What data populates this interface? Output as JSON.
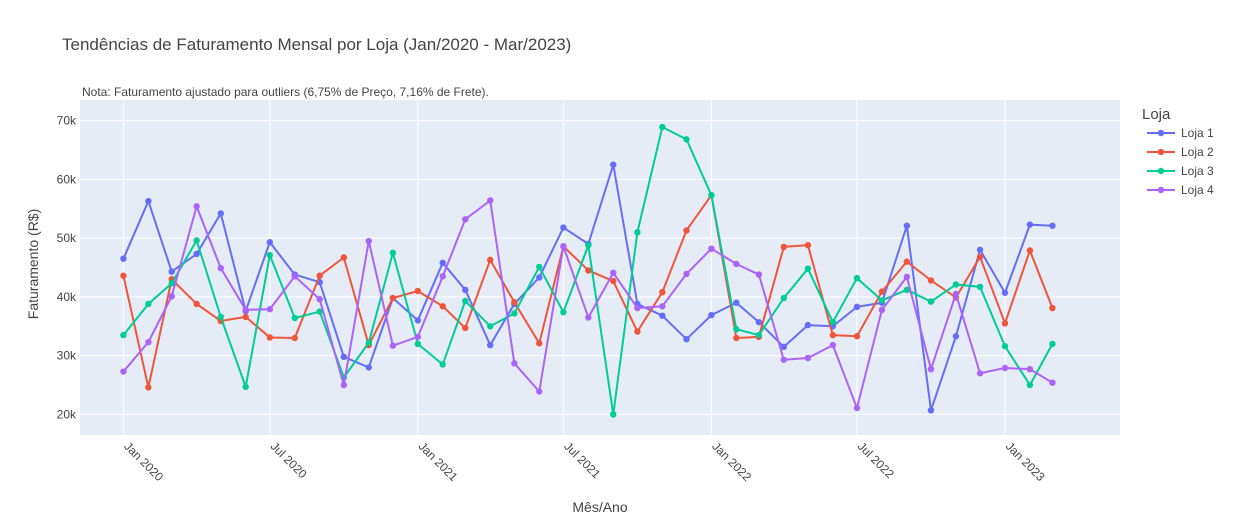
{
  "chart_data": {
    "type": "line",
    "title": "Tendências de Faturamento Mensal por Loja (Jan/2020 - Mar/2023)",
    "note": "Nota: Faturamento ajustado para outliers (6,75% de Preço, 7,16% de Frete).",
    "xlabel": "Mês/Ano",
    "ylabel": "Faturamento (R$)",
    "legend_title": "Loja",
    "legend_position": "right",
    "grid": true,
    "xlim": [
      "2019-11-08",
      "2023-05-24"
    ],
    "ylim": [
      16500,
      73500
    ],
    "x_ticks": [
      "2020-01-01",
      "2020-07-01",
      "2021-01-01",
      "2021-07-01",
      "2022-01-01",
      "2022-07-01",
      "2023-01-01"
    ],
    "x_tick_labels": [
      "Jan 2020",
      "Jul 2020",
      "Jan 2021",
      "Jul 2021",
      "Jan 2022",
      "Jul 2022",
      "Jan 2023"
    ],
    "y_ticks": [
      20000,
      30000,
      40000,
      50000,
      60000,
      70000
    ],
    "y_tick_labels": [
      "20k",
      "30k",
      "40k",
      "50k",
      "60k",
      "70k"
    ],
    "x": [
      "2020-01",
      "2020-02",
      "2020-03",
      "2020-04",
      "2020-05",
      "2020-06",
      "2020-07",
      "2020-08",
      "2020-09",
      "2020-10",
      "2020-11",
      "2020-12",
      "2021-01",
      "2021-02",
      "2021-03",
      "2021-04",
      "2021-05",
      "2021-06",
      "2021-07",
      "2021-08",
      "2021-09",
      "2021-10",
      "2021-11",
      "2021-12",
      "2022-01",
      "2022-02",
      "2022-03",
      "2022-04",
      "2022-05",
      "2022-06",
      "2022-07",
      "2022-08",
      "2022-09",
      "2022-10",
      "2022-11",
      "2022-12",
      "2023-01",
      "2023-02",
      "2023-03"
    ],
    "series": [
      {
        "name": "Loja 1",
        "color": "#636efa",
        "values": [
          46500,
          56300,
          44300,
          47300,
          54200,
          37600,
          49300,
          43800,
          42500,
          29800,
          28000,
          39800,
          36000,
          45800,
          41200,
          31800,
          38800,
          43300,
          51800,
          49000,
          62500,
          38800,
          36800,
          32800,
          36900,
          39000,
          35700,
          31500,
          35200,
          35000,
          38300,
          39000,
          52100,
          20700,
          33300,
          48000,
          40700,
          52300,
          52100
        ]
      },
      {
        "name": "Loja 2",
        "color": "#ef553b",
        "values": [
          43600,
          24600,
          43000,
          38800,
          35900,
          36600,
          33100,
          33000,
          43600,
          46700,
          31800,
          39800,
          41000,
          38400,
          34700,
          46300,
          39100,
          32100,
          48600,
          44500,
          42700,
          34100,
          40800,
          51300,
          57300,
          33000,
          33200,
          48500,
          48800,
          33500,
          33300,
          40900,
          46000,
          42800,
          39900,
          46800,
          35500,
          47900,
          38100
        ]
      },
      {
        "name": "Loja 3",
        "color": "#00cc96",
        "values": [
          33500,
          38800,
          42300,
          49600,
          36600,
          24700,
          47100,
          36400,
          37500,
          26300,
          32200,
          47500,
          32000,
          28500,
          39300,
          35000,
          37200,
          45100,
          37400,
          48800,
          20000,
          51000,
          68900,
          66800,
          57300,
          34500,
          33500,
          39800,
          44800,
          35700,
          43200,
          39400,
          41200,
          39200,
          42100,
          41700,
          31600,
          25000,
          32000
        ]
      },
      {
        "name": "Loja 4",
        "color": "#ab63fa",
        "values": [
          27300,
          32300,
          40100,
          55400,
          44900,
          37800,
          37900,
          43500,
          39600,
          25000,
          49500,
          31700,
          33200,
          43500,
          53200,
          56400,
          28700,
          23900,
          48600,
          36500,
          44100,
          38100,
          38400,
          43900,
          48200,
          45600,
          43800,
          29300,
          29600,
          31800,
          21100,
          37800,
          43400,
          27700,
          40500,
          27000,
          27900,
          27700,
          25400
        ]
      }
    ]
  }
}
